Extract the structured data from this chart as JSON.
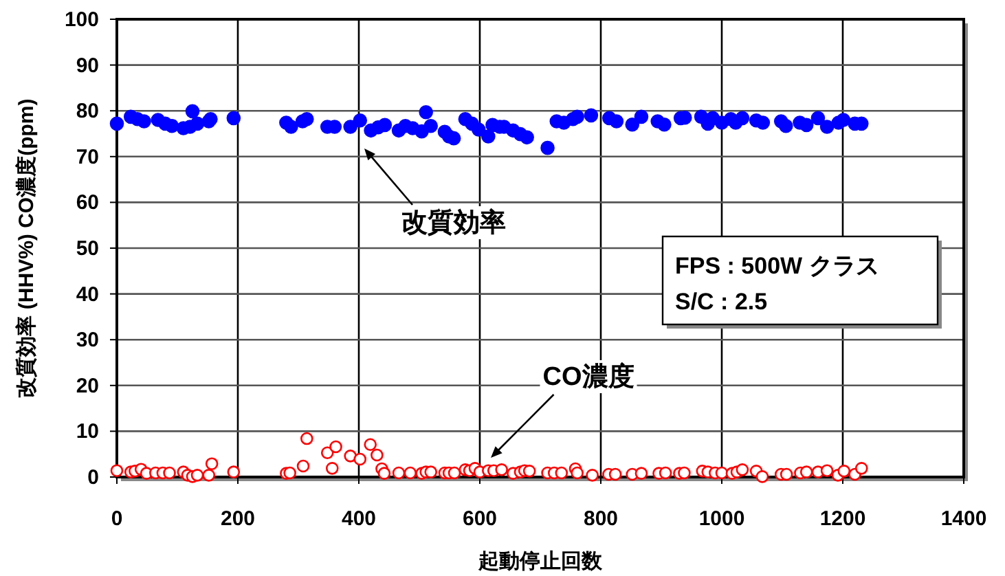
{
  "chart_data": {
    "type": "scatter",
    "xlabel": "起動停止回数",
    "ylabel": "改質効率 (HHV%) CO濃度(ppm)",
    "xlim": [
      0,
      1400
    ],
    "xticks": [
      0,
      200,
      400,
      600,
      800,
      1000,
      1200,
      1400
    ],
    "ylim": [
      0,
      100
    ],
    "yticks": [
      0,
      10,
      20,
      30,
      40,
      50,
      60,
      70,
      80,
      90,
      100
    ],
    "grid": true,
    "marker": "circle",
    "series": [
      {
        "color": "#0000ff",
        "x": [
          0,
          23,
          34,
          45,
          68,
          80,
          91,
          110,
          121,
          125,
          133,
          152,
          155,
          193,
          280,
          288,
          307,
          314,
          348,
          360,
          386,
          402,
          420,
          432,
          443,
          466,
          477,
          489,
          504,
          511,
          519,
          542,
          549,
          557,
          576,
          587,
          598,
          614,
          621,
          633,
          640,
          655,
          667,
          678,
          712,
          727,
          739,
          754,
          761,
          784,
          814,
          826,
          852,
          867,
          894,
          905,
          932,
          939,
          966,
          977,
          985,
          1000,
          1015,
          1023,
          1034,
          1057,
          1068,
          1098,
          1106,
          1129,
          1140,
          1159,
          1174,
          1193,
          1201,
          1220,
          1231
        ],
        "values": [
          77.2,
          78.7,
          78.2,
          77.7,
          78,
          77.2,
          76.7,
          76.2,
          76.5,
          79.9,
          77.2,
          77.7,
          78.2,
          78.4,
          77.4,
          76.5,
          77.7,
          78.2,
          76.5,
          76.5,
          76.5,
          77.9,
          75.7,
          76.4,
          76.9,
          75.7,
          76.7,
          76.2,
          75.5,
          79.7,
          76.7,
          75.4,
          74.4,
          74,
          78.2,
          77.2,
          75.9,
          74.4,
          76.9,
          76.5,
          76.5,
          75.7,
          74.9,
          74.2,
          71.9,
          77.7,
          77.4,
          78.2,
          78.7,
          79,
          78.4,
          77.7,
          77,
          78.7,
          77.7,
          77,
          78.4,
          78.5,
          78.7,
          77.2,
          78.4,
          77.4,
          78.2,
          77.4,
          78.4,
          77.9,
          77.4,
          77.7,
          76.7,
          77.4,
          76.9,
          78.4,
          76.5,
          77.4,
          78,
          77.2,
          77.2
        ]
      },
      {
        "color": "#ff0000",
        "x": [
          0,
          23,
          30,
          40,
          49,
          64,
          76,
          87,
          110,
          117,
          125,
          133,
          152,
          157,
          193,
          280,
          286,
          308,
          314,
          348,
          356,
          362,
          386,
          402,
          419,
          430,
          438,
          442,
          466,
          485,
          504,
          511,
          519,
          542,
          549,
          558,
          576,
          583,
          592,
          600,
          614,
          623,
          636,
          655,
          667,
          674,
          682,
          712,
          723,
          735,
          758,
          761,
          786,
          813,
          824,
          852,
          867,
          896,
          907,
          930,
          938,
          968,
          977,
          989,
          1000,
          1017,
          1025,
          1034,
          1057,
          1067,
          1098,
          1107,
          1130,
          1140,
          1159,
          1174,
          1192,
          1202,
          1220,
          1231
        ],
        "values": [
          1.4,
          1.1,
          1.3,
          1.7,
          0.8,
          0.9,
          0.9,
          0.9,
          1.1,
          0.4,
          0.1,
          0.4,
          0.4,
          2.9,
          1.1,
          0.8,
          0.9,
          2.4,
          8.4,
          5.3,
          1.9,
          6.6,
          4.6,
          3.9,
          7.1,
          4.8,
          1.8,
          0.8,
          0.9,
          0.9,
          0.8,
          1.1,
          1.1,
          0.9,
          0.9,
          0.9,
          1.6,
          1.4,
          1.9,
          1.1,
          1.4,
          1.4,
          1.6,
          0.8,
          1.1,
          1.4,
          1.3,
          0.9,
          0.9,
          0.9,
          1.8,
          0.9,
          0.4,
          0.6,
          0.6,
          0.6,
          0.8,
          0.8,
          0.9,
          0.8,
          0.9,
          1.3,
          1.1,
          0.9,
          0.9,
          0.8,
          1.1,
          1.6,
          1.3,
          0.1,
          0.6,
          0.6,
          0.9,
          1.1,
          1.1,
          1.4,
          0.4,
          1.3,
          0.6,
          1.9
        ]
      }
    ],
    "annotations": [
      "改質効率",
      "CO濃度",
      "FPS : 500W クラス",
      "S/C : 2.5"
    ]
  }
}
